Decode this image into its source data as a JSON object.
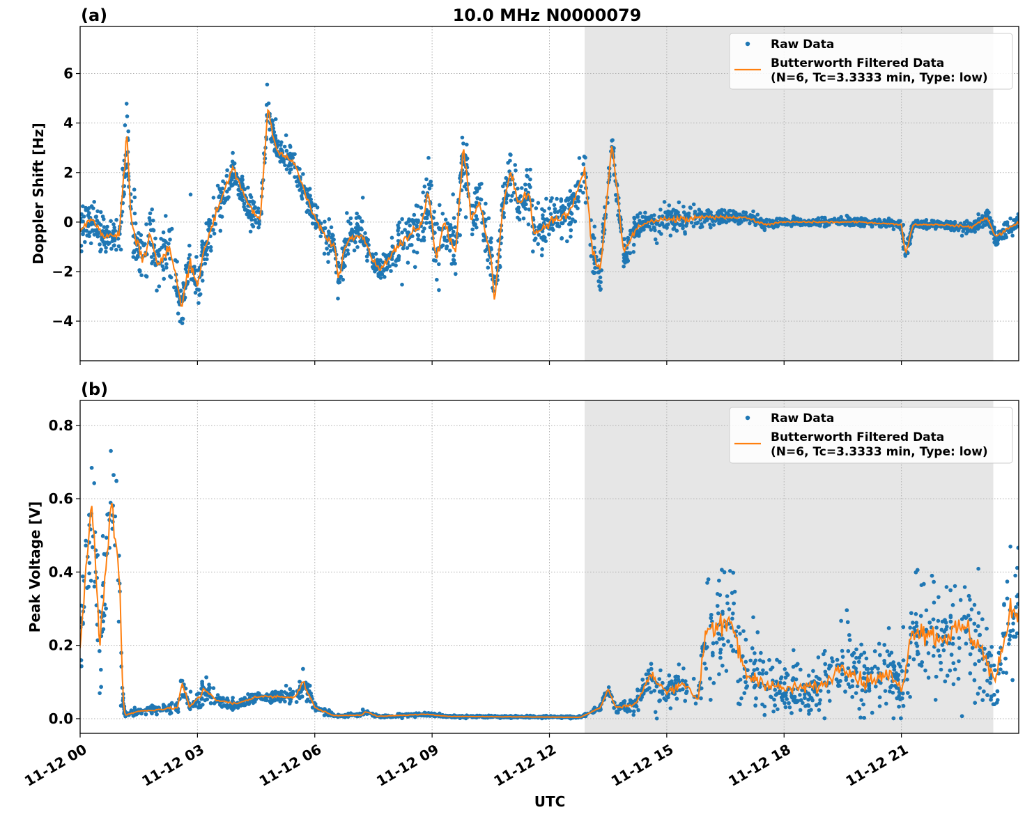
{
  "figure": {
    "title": "10.0 MHz N0000079",
    "xlabel": "UTC"
  },
  "colors": {
    "raw": "#1f77b4",
    "filtered": "#ff7f0e",
    "shade": "#e6e6e6"
  },
  "x_ticks": [
    "11-12 00",
    "11-12 03",
    "11-12 06",
    "11-12 09",
    "11-12 12",
    "11-12 15",
    "11-12 18",
    "11-12 21"
  ],
  "legend": {
    "raw": "Raw Data",
    "filtered_line1": "Butterworth Filtered Data",
    "filtered_line2": "(N=6, Tc=3.3333 min, Type: low)"
  },
  "chart_data": [
    {
      "type": "scatter+line",
      "panel_label": "(a)",
      "ylabel": "Doppler Shift [Hz]",
      "xlim_hours": [
        0,
        24
      ],
      "ylim": [
        -5.6,
        7.9
      ],
      "y_ticks": [
        -4,
        -2,
        0,
        2,
        4,
        6
      ],
      "y_tick_labels": [
        "−4",
        "−2",
        "0",
        "2",
        "4",
        "6"
      ],
      "shaded_hours": [
        12.9,
        23.35
      ],
      "grid": true,
      "legend_position": "top-right",
      "series_knots": {
        "hours": [
          0,
          0.3,
          0.6,
          1.0,
          1.2,
          1.3,
          1.6,
          1.8,
          2.0,
          2.3,
          2.6,
          2.8,
          3.0,
          3.2,
          3.5,
          3.9,
          4.2,
          4.6,
          4.8,
          5.0,
          5.3,
          5.5,
          5.9,
          6.3,
          6.5,
          6.6,
          6.8,
          7.2,
          7.5,
          7.7,
          8.0,
          8.4,
          8.8,
          8.9,
          9.1,
          9.3,
          9.6,
          9.8,
          10.0,
          10.2,
          10.5,
          10.6,
          10.8,
          11.0,
          11.2,
          11.5,
          11.6,
          12.0,
          12.5,
          12.9,
          13.1,
          13.3,
          13.6,
          13.9,
          14.2,
          14.5,
          15,
          15.5,
          16,
          17,
          17.5,
          18,
          19,
          20,
          21,
          21.1,
          21.3,
          22,
          22.8,
          23.2,
          23.4,
          23.8,
          24
        ],
        "filtered": [
          -0.3,
          0.2,
          -0.6,
          -0.5,
          3.6,
          0,
          -1.5,
          -0.5,
          -1.8,
          -1,
          -3.5,
          -1.5,
          -2.5,
          -1,
          0.5,
          2.2,
          1,
          0,
          4.6,
          3,
          2.6,
          2.3,
          0.5,
          -0.7,
          -0.9,
          -2.3,
          -0.8,
          -0.4,
          -1.6,
          -1.9,
          -1.2,
          -0.6,
          0.2,
          1.5,
          -1.5,
          0,
          -1.2,
          3.2,
          0,
          0.8,
          -1.3,
          -3.3,
          0.5,
          2.0,
          0.8,
          1.2,
          -0.5,
          0,
          0.3,
          2.1,
          -1.2,
          -2,
          3.2,
          -1.3,
          -0.3,
          0,
          0.1,
          0.1,
          0.2,
          0.2,
          -0.1,
          0,
          0,
          0,
          -0.1,
          -1.3,
          -0.1,
          -0.1,
          -0.2,
          0.2,
          -0.6,
          -0.2,
          0
        ],
        "raw_spread": [
          1.2,
          1,
          0.8,
          0.8,
          2.5,
          1.2,
          1.5,
          1.5,
          1.5,
          1.5,
          1.3,
          1.5,
          1.5,
          1.3,
          1.2,
          0.8,
          0.8,
          0.9,
          1,
          0.8,
          0.8,
          0.8,
          0.7,
          0.8,
          0.8,
          1.5,
          0.9,
          0.9,
          0.6,
          0.6,
          1,
          1.3,
          1.5,
          1.6,
          1.5,
          1.3,
          1.5,
          1.8,
          1.2,
          1.2,
          1.3,
          1.5,
          1.2,
          1.2,
          1.2,
          1.2,
          1.2,
          1.2,
          1.2,
          1.3,
          1.4,
          1.2,
          0.6,
          0.9,
          0.7,
          0.5,
          0.8,
          0.9,
          0.4,
          0.3,
          0.3,
          0.2,
          0.2,
          0.2,
          0.2,
          0.6,
          0.2,
          0.2,
          0.3,
          0.4,
          0.5,
          0.4,
          0.4
        ]
      }
    },
    {
      "type": "scatter+line",
      "panel_label": "(b)",
      "ylabel": "Peak Voltage [V]",
      "xlim_hours": [
        0,
        24
      ],
      "ylim": [
        -0.04,
        0.868
      ],
      "y_ticks": [
        0.0,
        0.2,
        0.4,
        0.6,
        0.8
      ],
      "y_tick_labels": [
        "0.0",
        "0.2",
        "0.4",
        "0.6",
        "0.8"
      ],
      "shaded_hours": [
        12.9,
        23.35
      ],
      "grid": true,
      "legend_position": "top-right",
      "series_knots": {
        "hours": [
          0,
          0.3,
          0.5,
          0.8,
          1.0,
          1.1,
          1.15,
          1.5,
          2.5,
          2.6,
          2.8,
          3.2,
          3.5,
          4,
          4.5,
          5.5,
          5.7,
          6,
          6.5,
          7.2,
          7.3,
          7.6,
          8.8,
          9.5,
          12.8,
          13.3,
          13.5,
          13.7,
          14.2,
          14.6,
          15,
          15.4,
          15.8,
          16,
          16.7,
          17,
          17.5,
          18,
          19,
          19.5,
          20,
          20.7,
          21,
          21.3,
          22,
          22.6,
          23,
          23.4,
          23.8,
          24
        ],
        "filtered": [
          0.2,
          0.6,
          0.2,
          0.6,
          0.4,
          0.05,
          0.01,
          0.02,
          0.03,
          0.1,
          0.03,
          0.08,
          0.05,
          0.04,
          0.06,
          0.06,
          0.1,
          0.03,
          0.008,
          0.01,
          0.02,
          0.006,
          0.012,
          0.006,
          0.004,
          0.03,
          0.08,
          0.03,
          0.04,
          0.12,
          0.07,
          0.1,
          0.05,
          0.25,
          0.25,
          0.12,
          0.1,
          0.08,
          0.09,
          0.15,
          0.1,
          0.12,
          0.08,
          0.25,
          0.22,
          0.25,
          0.2,
          0.1,
          0.3,
          0.3
        ],
        "raw_spread": [
          0.12,
          0.2,
          0.2,
          0.2,
          0.25,
          0.05,
          0.01,
          0.012,
          0.02,
          0.06,
          0.02,
          0.06,
          0.02,
          0.02,
          0.02,
          0.03,
          0.05,
          0.015,
          0.006,
          0.006,
          0.01,
          0.005,
          0.006,
          0.004,
          0.004,
          0.01,
          0.02,
          0.015,
          0.03,
          0.08,
          0.06,
          0.07,
          0.05,
          0.18,
          0.2,
          0.15,
          0.12,
          0.09,
          0.1,
          0.12,
          0.12,
          0.12,
          0.08,
          0.2,
          0.2,
          0.2,
          0.2,
          0.1,
          0.2,
          0.2
        ]
      }
    }
  ]
}
